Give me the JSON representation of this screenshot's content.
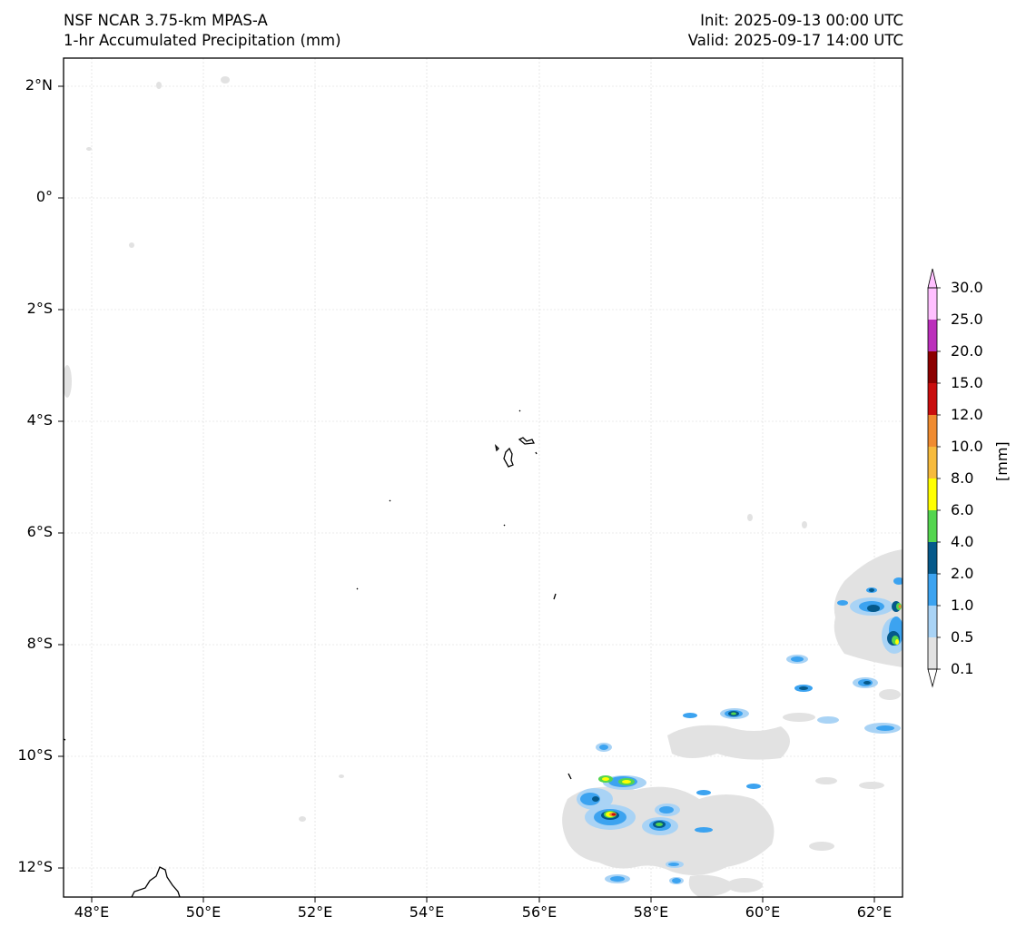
{
  "title": {
    "model": "NSF NCAR 3.75-km MPAS-A",
    "field": "1-hr Accumulated Precipitation (mm)",
    "init": "Init: 2025-09-13 00:00 UTC",
    "valid": "Valid: 2025-09-17 14:00 UTC"
  },
  "map": {
    "lat_labels": [
      "2°N",
      "0°",
      "2°S",
      "4°S",
      "6°S",
      "8°S",
      "10°S",
      "12°S"
    ],
    "lon_labels": [
      "48°E",
      "50°E",
      "52°E",
      "54°E",
      "56°E",
      "58°E",
      "60°E",
      "62°E"
    ]
  },
  "colorbar": {
    "unit": "[mm]",
    "levels": [
      "0.1",
      "0.5",
      "1.0",
      "2.0",
      "4.0",
      "6.0",
      "8.0",
      "10.0",
      "12.0",
      "15.0",
      "20.0",
      "25.0",
      "30.0"
    ],
    "colors": [
      "#e2e2e2",
      "#a9d3f5",
      "#3ca3f0",
      "#05598a",
      "#54d54f",
      "#ffff00",
      "#f6ba3c",
      "#ef8b30",
      "#c90d0d",
      "#8c0000",
      "#bb2fbb",
      "#ffc0ff"
    ]
  }
}
